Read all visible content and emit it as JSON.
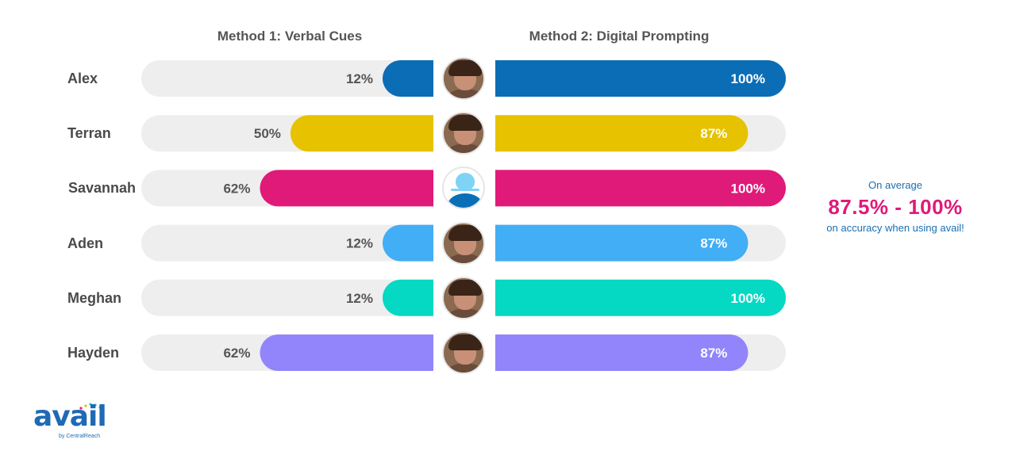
{
  "chart_data": {
    "type": "bar",
    "layout": "butterfly",
    "series": [
      {
        "name": "Method 1: Verbal Cues",
        "values": [
          12,
          50,
          62,
          12,
          12,
          62
        ]
      },
      {
        "name": "Method 2: Digital Prompting",
        "values": [
          100,
          87,
          100,
          87,
          100,
          87
        ]
      }
    ],
    "categories": [
      "Alex",
      "Terran",
      "Savannah",
      "Aden",
      "Meghan",
      "Hayden"
    ],
    "value_labels_left": [
      "12%",
      "50%",
      "62%",
      "12%",
      "12%",
      "62%"
    ],
    "value_labels_right": [
      "100%",
      "87%",
      "100%",
      "87%",
      "100%",
      "87%"
    ],
    "colors": [
      "#0b6db5",
      "#e6c200",
      "#e01a79",
      "#42aef5",
      "#05d8c3",
      "#9285fb"
    ],
    "track_color": "#eeeeee",
    "xlim": [
      0,
      100
    ]
  },
  "headers": {
    "left": "Method 1: Verbal Cues",
    "right": "Method 2: Digital Prompting"
  },
  "avatars": [
    "person-photo",
    "person-photo",
    "placeholder-avatar-icon",
    "person-photo",
    "person-photo",
    "person-photo"
  ],
  "summary": {
    "line1": "On average",
    "range": "87.5% - 100%",
    "line3": "on accuracy when using avail!"
  },
  "logo": {
    "word": "avail",
    "byline": "by CentralReach"
  }
}
